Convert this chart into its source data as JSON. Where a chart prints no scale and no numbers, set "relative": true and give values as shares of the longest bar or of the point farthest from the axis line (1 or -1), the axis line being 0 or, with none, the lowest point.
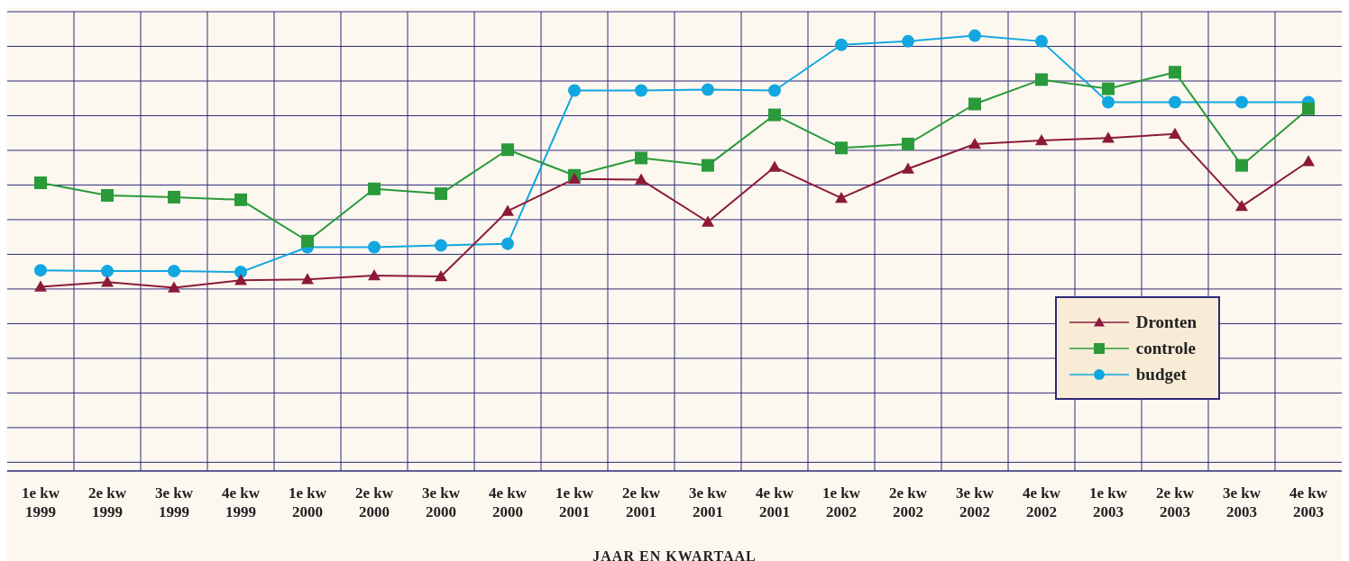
{
  "chart_data": {
    "type": "line",
    "relative": true,
    "xlabel": "JAAR EN KWARTAAL",
    "categories": [
      "1e kw 1999",
      "2e kw 1999",
      "3e kw 1999",
      "4e kw 1999",
      "1e kw 2000",
      "2e kw 2000",
      "3e kw 2000",
      "4e kw 2000",
      "1e kw 2001",
      "2e kw 2001",
      "3e kw 2001",
      "4e kw 2001",
      "1e kw 2002",
      "2e kw 2002",
      "3e kw 2002",
      "4e kw 2002",
      "1e kw 2003",
      "2e kw 2003",
      "3e kw 2003",
      "4e kw 2003"
    ],
    "series": [
      {
        "name": "Dronten",
        "color": "#8b1a3a",
        "marker": "triangle",
        "values": [
          0.423,
          0.434,
          0.421,
          0.438,
          0.44,
          0.449,
          0.447,
          0.597,
          0.671,
          0.669,
          0.572,
          0.698,
          0.627,
          0.694,
          0.751,
          0.759,
          0.765,
          0.774,
          0.608,
          0.711
        ]
      },
      {
        "name": "controle",
        "color": "#2a9a3a",
        "marker": "square",
        "values": [
          0.662,
          0.633,
          0.629,
          0.623,
          0.528,
          0.648,
          0.637,
          0.738,
          0.679,
          0.719,
          0.702,
          0.818,
          0.742,
          0.751,
          0.843,
          0.899,
          0.878,
          0.916,
          0.702,
          0.832
        ]
      },
      {
        "name": "budget",
        "color": "#12a7e0",
        "marker": "circle",
        "values": [
          0.461,
          0.459,
          0.459,
          0.457,
          0.514,
          0.514,
          0.518,
          0.522,
          0.874,
          0.874,
          0.876,
          0.874,
          0.979,
          0.987,
          1,
          0.987,
          0.847,
          0.847,
          0.847,
          0.847
        ]
      }
    ],
    "grid": true,
    "legend": "bottom right",
    "line_style": "solid"
  }
}
